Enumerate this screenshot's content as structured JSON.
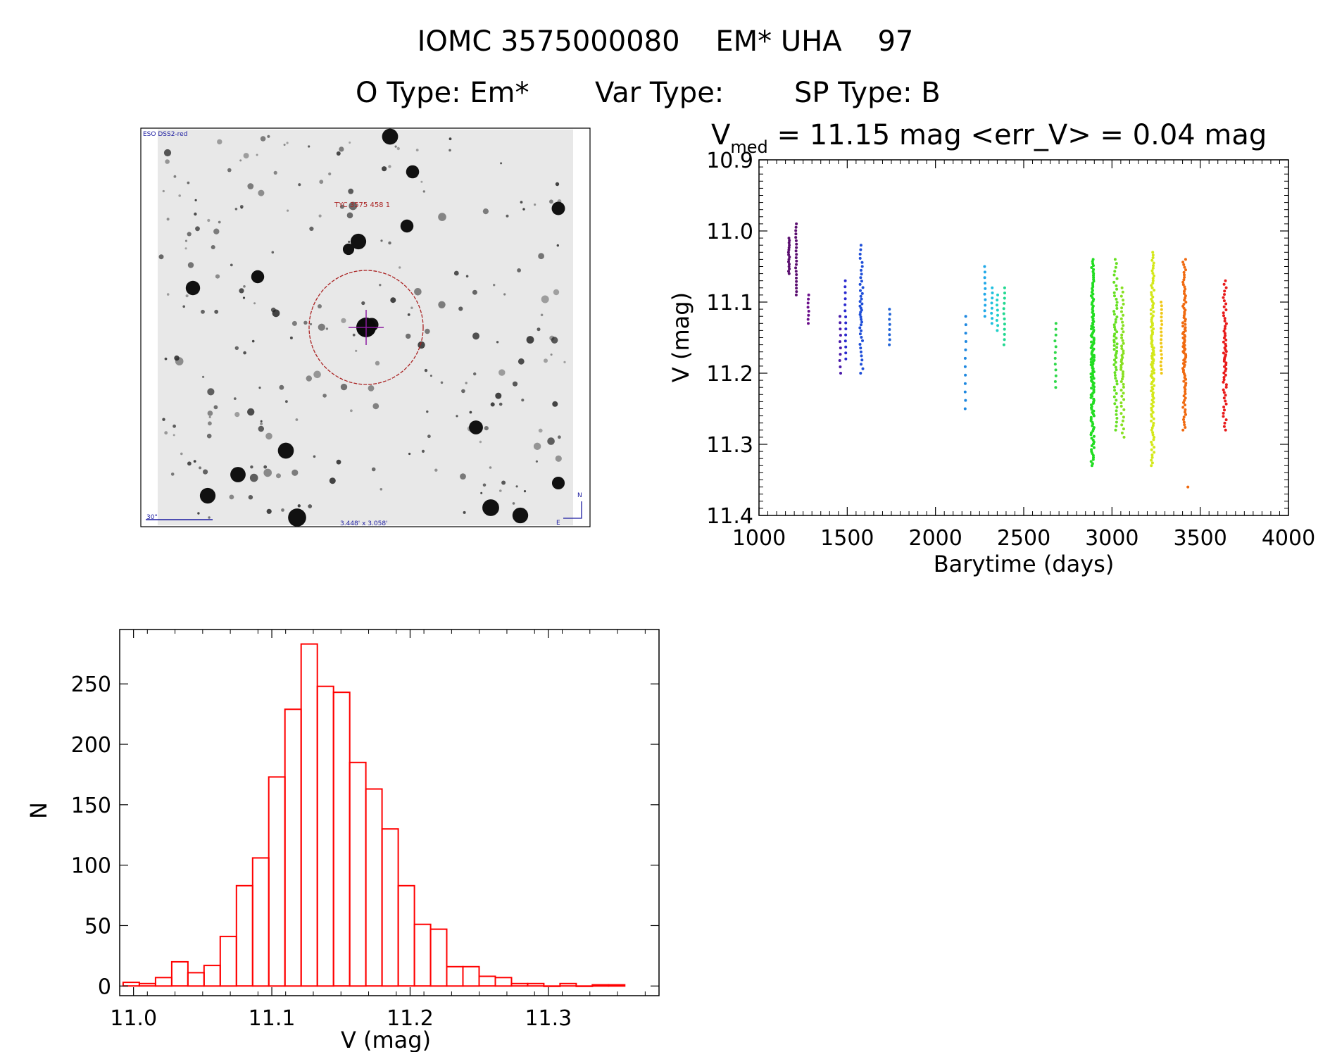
{
  "header": {
    "title": "IOMC 3575000080    EM* UHA    97",
    "otype_label": "O Type: Em*",
    "vartype_label": "Var Type:",
    "sptype_label": "SP Type: B"
  },
  "image_panel": {
    "survey_label": "ESO DSS2-red",
    "object_label": "TYC 3575 458 1",
    "scale_label": "30\"",
    "fov_label": "3.448' x 3.058'",
    "north_label": "N",
    "east_label": "E",
    "circle_color": "#aa2222",
    "text_color": "#1a1aa0",
    "label_color": "#aa2222"
  },
  "chart_data": [
    {
      "type": "scatter",
      "title_main": "V",
      "title_sub": "med",
      "title_rest": " = 11.15 mag <err_V> = 0.04 mag",
      "xlabel": "Barytime (days)",
      "ylabel": "V (mag)",
      "xlim": [
        1000,
        4000
      ],
      "ylim": [
        11.4,
        10.9
      ],
      "y_inverted": true,
      "xticks": [
        1000,
        1500,
        2000,
        2500,
        3000,
        3500,
        4000
      ],
      "xtick_labels": [
        "1000",
        "1500",
        "2000",
        "2500",
        "3000",
        "3500",
        "4000"
      ],
      "yticks": [
        10.9,
        11.0,
        11.1,
        11.2,
        11.3,
        11.4
      ],
      "ytick_labels": [
        "10.9",
        "11.0",
        "11.1",
        "11.2",
        "11.3",
        "11.4"
      ],
      "groups": [
        {
          "x": 1170,
          "y_min": 11.01,
          "y_max": 11.06,
          "n": 16,
          "color": "#5b0f70"
        },
        {
          "x": 1210,
          "y_min": 10.99,
          "y_max": 11.09,
          "n": 22,
          "color": "#5b0f70"
        },
        {
          "x": 1280,
          "y_min": 11.09,
          "y_max": 11.13,
          "n": 8,
          "color": "#6a0e8a"
        },
        {
          "x": 1460,
          "y_min": 11.12,
          "y_max": 11.2,
          "n": 10,
          "color": "#4a1aaa"
        },
        {
          "x": 1490,
          "y_min": 11.07,
          "y_max": 11.18,
          "n": 14,
          "color": "#2b2bd0"
        },
        {
          "x": 1580,
          "y_min": 11.02,
          "y_max": 11.2,
          "n": 40,
          "color": "#1f4fd8"
        },
        {
          "x": 1740,
          "y_min": 11.11,
          "y_max": 11.16,
          "n": 8,
          "color": "#1f63d8"
        },
        {
          "x": 2170,
          "y_min": 11.12,
          "y_max": 11.25,
          "n": 12,
          "color": "#1e88e0"
        },
        {
          "x": 2280,
          "y_min": 11.05,
          "y_max": 11.12,
          "n": 10,
          "color": "#1fa8e8"
        },
        {
          "x": 2320,
          "y_min": 11.08,
          "y_max": 11.13,
          "n": 8,
          "color": "#1fc0e0"
        },
        {
          "x": 2350,
          "y_min": 11.09,
          "y_max": 11.14,
          "n": 8,
          "color": "#20d0c8"
        },
        {
          "x": 2390,
          "y_min": 11.08,
          "y_max": 11.16,
          "n": 12,
          "color": "#20d890"
        },
        {
          "x": 2680,
          "y_min": 11.13,
          "y_max": 11.22,
          "n": 12,
          "color": "#2ed84a"
        },
        {
          "x": 2890,
          "y_min": 11.04,
          "y_max": 11.33,
          "n": 140,
          "color": "#22dd22"
        },
        {
          "x": 3020,
          "y_min": 11.04,
          "y_max": 11.28,
          "n": 60,
          "color": "#66e022"
        },
        {
          "x": 3060,
          "y_min": 11.08,
          "y_max": 11.29,
          "n": 50,
          "color": "#88e022"
        },
        {
          "x": 3230,
          "y_min": 11.03,
          "y_max": 11.33,
          "n": 110,
          "color": "#d4e81a"
        },
        {
          "x": 3280,
          "y_min": 11.1,
          "y_max": 11.2,
          "n": 20,
          "color": "#f0c818"
        },
        {
          "x": 3410,
          "y_min": 11.04,
          "y_max": 11.28,
          "n": 90,
          "color": "#f06a10"
        },
        {
          "x": 3430,
          "y_min": 11.36,
          "y_max": 11.36,
          "n": 1,
          "color": "#f06a10"
        },
        {
          "x": 3640,
          "y_min": 11.07,
          "y_max": 11.28,
          "n": 60,
          "color": "#e81a1a"
        }
      ]
    },
    {
      "type": "bar",
      "subtype": "histogram",
      "xlabel": "V (mag)",
      "ylabel": "N",
      "xlim": [
        10.99,
        11.38
      ],
      "ylim": [
        -8,
        295
      ],
      "xticks": [
        11.0,
        11.1,
        11.2,
        11.3
      ],
      "xtick_labels": [
        "11.0",
        "11.1",
        "11.2",
        "11.3"
      ],
      "yticks": [
        0,
        50,
        100,
        150,
        200,
        250
      ],
      "ytick_labels": [
        "0",
        "50",
        "100",
        "150",
        "200",
        "250"
      ],
      "bin_width": 0.0117,
      "bin_start": 10.9925,
      "color": "#ff0000",
      "values": [
        3,
        2,
        7,
        20,
        11,
        17,
        41,
        83,
        106,
        173,
        229,
        283,
        248,
        243,
        185,
        163,
        130,
        83,
        51,
        47,
        16,
        16,
        8,
        7,
        2,
        2,
        0,
        2,
        0,
        1,
        1
      ]
    }
  ]
}
